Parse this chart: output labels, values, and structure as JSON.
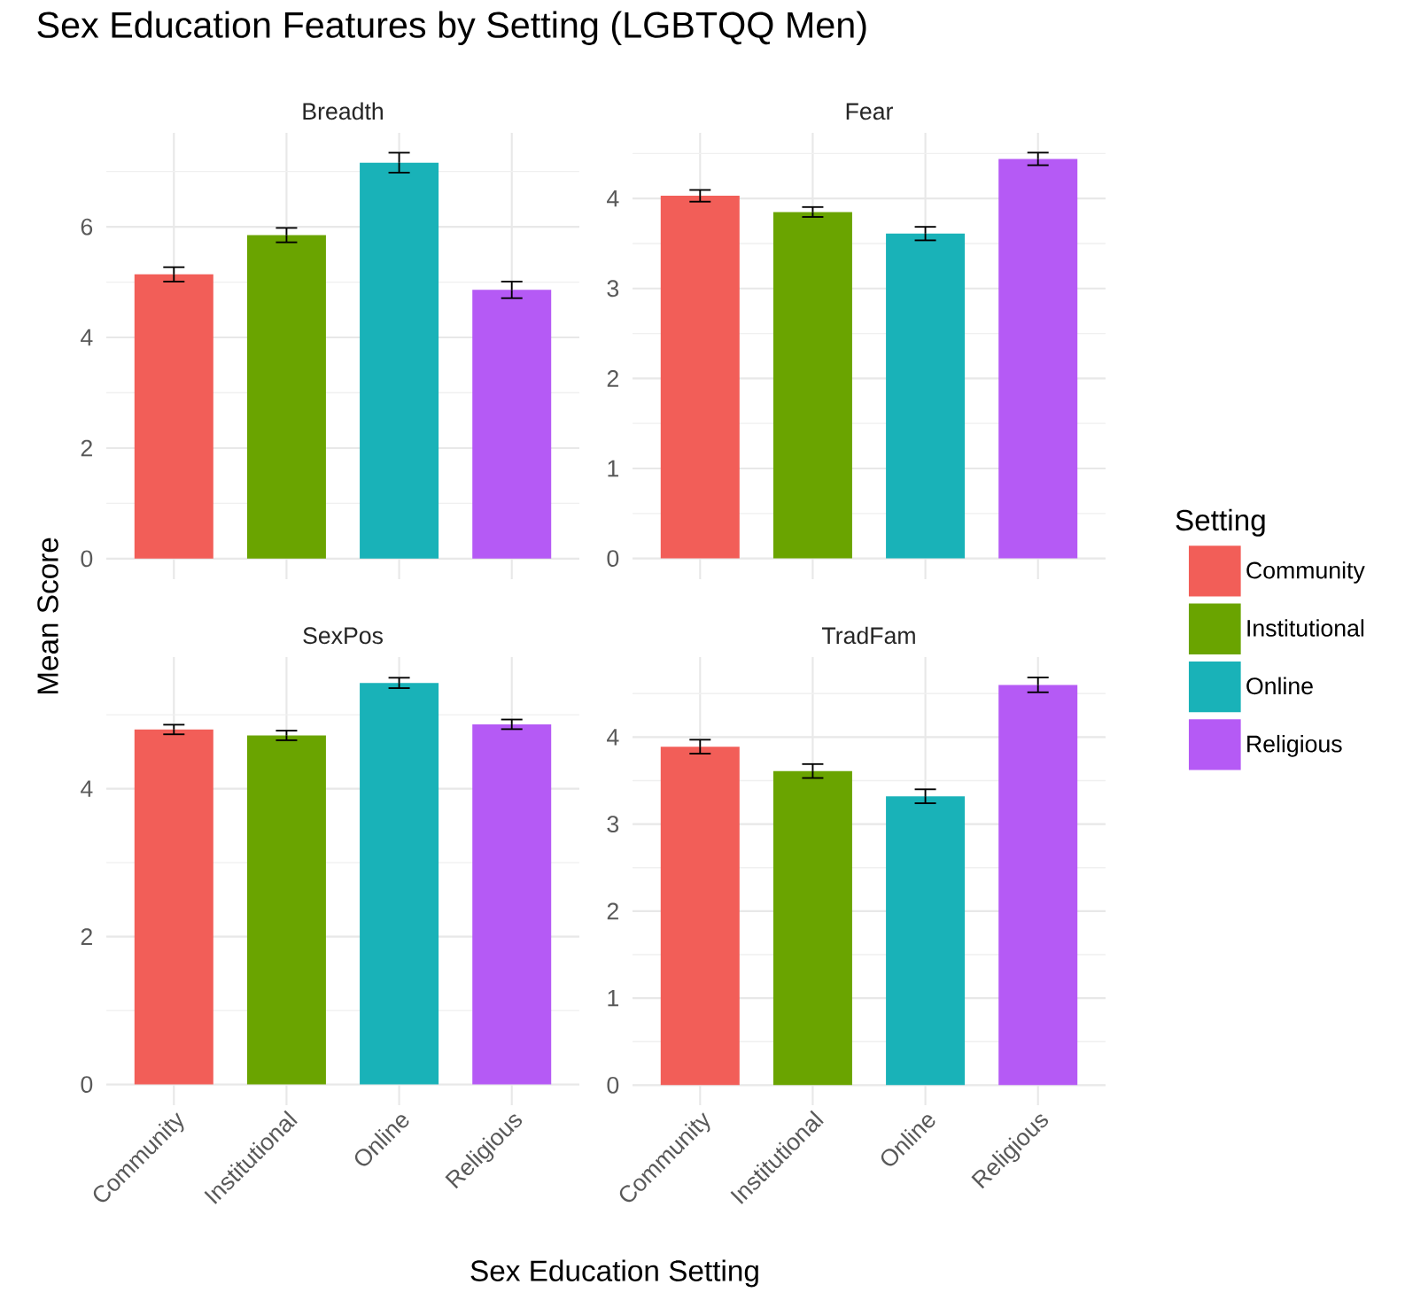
{
  "chart_data": [
    {
      "type": "bar",
      "title": "Breadth",
      "annotations": [
        "Sex Education Features by Setting (LGBTQQ Men)"
      ],
      "ylabel": "Mean Score",
      "categories": [
        null,
        null,
        null,
        null
      ],
      "series": [
        {
          "color": "#f25e58",
          "values": [
            5.14,
            null,
            null,
            null
          ],
          "errors": [
            0.13,
            null,
            null,
            null
          ]
        },
        {
          "color": "#6aa400",
          "values": [
            null,
            5.85,
            null,
            null
          ],
          "errors": [
            null,
            0.13,
            null,
            null
          ]
        },
        {
          "color": "#19b2b8",
          "values": [
            null,
            null,
            7.16,
            null
          ],
          "errors": [
            null,
            null,
            0.18,
            null
          ]
        },
        {
          "color": "#b55af5",
          "values": [
            null,
            null,
            null,
            4.86
          ],
          "errors": [
            null,
            null,
            null,
            0.15
          ]
        }
      ],
      "ylim": [
        -0.37,
        7.7
      ],
      "yticks": [
        0,
        {
          "value": 1,
          "label": null
        },
        2,
        {
          "value": 3,
          "label": null
        },
        4,
        {
          "value": 5,
          "label": null
        },
        6,
        {
          "value": 7,
          "label": null
        }
      ],
      "grid": true,
      "tick_labels": "y"
    },
    {
      "type": "bar",
      "title": "Fear",
      "legend": "right",
      "legend_title": "Setting",
      "categories": [
        null,
        null,
        null,
        null
      ],
      "series": [
        {
          "name": "Community",
          "color": "#f25e58",
          "values": [
            4.03,
            null,
            null,
            null
          ],
          "errors": [
            0.065,
            null,
            null,
            null
          ]
        },
        {
          "name": "Institutional",
          "color": "#6aa400",
          "values": [
            null,
            3.85,
            null,
            null
          ],
          "errors": [
            null,
            0.055,
            null,
            null
          ]
        },
        {
          "name": "Online",
          "color": "#19b2b8",
          "values": [
            null,
            null,
            3.61,
            null
          ],
          "errors": [
            null,
            null,
            0.075,
            null
          ]
        },
        {
          "name": "Religious",
          "color": "#b55af5",
          "values": [
            null,
            null,
            null,
            4.44
          ],
          "errors": [
            null,
            null,
            null,
            0.07
          ]
        }
      ],
      "ylim": [
        -0.23,
        4.73
      ],
      "yticks": [
        0,
        {
          "value": 0.5,
          "label": null
        },
        1,
        {
          "value": 1.5,
          "label": null
        },
        2,
        {
          "value": 2.5,
          "label": null
        },
        3,
        {
          "value": 3.5,
          "label": null
        },
        4,
        {
          "value": 4.5,
          "label": null
        }
      ],
      "grid": true,
      "tick_labels": "y"
    },
    {
      "type": "bar",
      "title": "SexPos",
      "xlabel": "Sex Education Setting",
      "categories": [
        "Community",
        "Institutional",
        "Online",
        "Religious"
      ],
      "series": [
        {
          "color": "#f25e58",
          "values": [
            4.8,
            null,
            null,
            null
          ],
          "errors": [
            0.065,
            null,
            null,
            null
          ]
        },
        {
          "color": "#6aa400",
          "values": [
            null,
            4.72,
            null,
            null
          ],
          "errors": [
            null,
            0.065,
            null,
            null
          ]
        },
        {
          "color": "#19b2b8",
          "values": [
            null,
            null,
            5.43,
            null
          ],
          "errors": [
            null,
            null,
            0.07,
            null
          ]
        },
        {
          "color": "#b55af5",
          "values": [
            null,
            null,
            null,
            4.87
          ],
          "errors": [
            null,
            null,
            null,
            0.065
          ]
        }
      ],
      "ylim": [
        -0.28,
        5.78
      ],
      "yticks": [
        0,
        {
          "value": 1,
          "label": null
        },
        2,
        {
          "value": 3,
          "label": null
        },
        4,
        {
          "value": 5,
          "label": null
        }
      ],
      "grid": true
    },
    {
      "type": "bar",
      "title": "TradFam",
      "categories": [
        "Community",
        "Institutional",
        "Online",
        "Religious"
      ],
      "series": [
        {
          "color": "#f25e58",
          "values": [
            3.89,
            null,
            null,
            null
          ],
          "errors": [
            0.08,
            null,
            null,
            null
          ]
        },
        {
          "color": "#6aa400",
          "values": [
            null,
            3.61,
            null,
            null
          ],
          "errors": [
            null,
            0.08,
            null,
            null
          ]
        },
        {
          "color": "#19b2b8",
          "values": [
            null,
            null,
            3.32,
            null
          ],
          "errors": [
            null,
            null,
            0.08,
            null
          ]
        },
        {
          "color": "#b55af5",
          "values": [
            null,
            null,
            null,
            4.6
          ],
          "errors": [
            null,
            null,
            null,
            0.085
          ]
        }
      ],
      "ylim": [
        -0.23,
        4.92
      ],
      "yticks": [
        0,
        {
          "value": 0.5,
          "label": null
        },
        1,
        {
          "value": 1.5,
          "label": null
        },
        2,
        {
          "value": 2.5,
          "label": null
        },
        3,
        {
          "value": 3.5,
          "label": null
        },
        4,
        {
          "value": 4.5,
          "label": null
        }
      ],
      "grid": true
    }
  ]
}
